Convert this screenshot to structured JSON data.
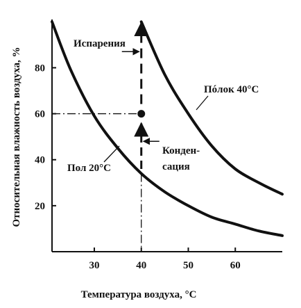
{
  "chart_data": {
    "type": "line",
    "title": "",
    "xlabel": "Температура воздуха, °С",
    "ylabel": "Относительная влажность воздуха, %",
    "xlim": [
      21,
      70
    ],
    "ylim": [
      0,
      101
    ],
    "x_ticks": [
      "30",
      "40",
      "50",
      "60"
    ],
    "y_ticks": [
      "20",
      "40",
      "60",
      "80"
    ],
    "grid": false,
    "series": [
      {
        "name": "Пол 20°С",
        "x": [
          21,
          25,
          30,
          35,
          40,
          45,
          50,
          55,
          60,
          65,
          70
        ],
        "y": [
          100,
          79,
          59,
          45,
          34,
          26,
          20,
          15,
          12,
          9,
          7
        ]
      },
      {
        "name": "Пóлок 40°С",
        "x": [
          40,
          45,
          50,
          55,
          60,
          65,
          70
        ],
        "y": [
          100,
          77,
          60,
          46,
          36,
          30,
          25
        ]
      }
    ],
    "annotations": {
      "evaporation": "Испарения",
      "condensation_line1": "Конден-",
      "condensation_line2": "сация",
      "point": {
        "x": 40,
        "y": 60
      }
    }
  }
}
